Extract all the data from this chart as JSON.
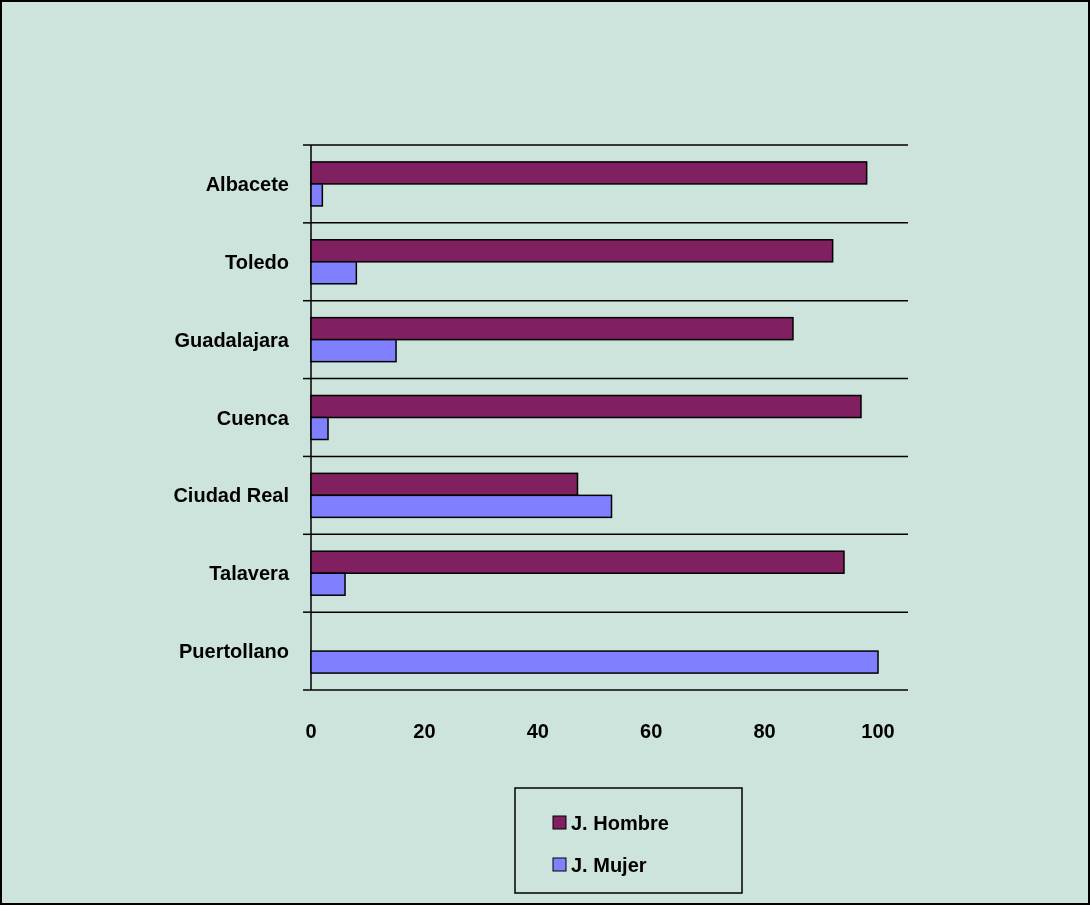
{
  "chart_data": {
    "type": "bar",
    "orientation": "horizontal",
    "categories": [
      "Albacete",
      "Toledo",
      "Guadalajara",
      "Cuenca",
      "Ciudad Real",
      "Talavera",
      "Puertollano"
    ],
    "series": [
      {
        "name": "J. Hombre",
        "color": "#802060",
        "values": [
          98,
          92,
          85,
          97,
          47,
          94,
          0
        ]
      },
      {
        "name": "J. Mujer",
        "color": "#8080ff",
        "values": [
          2,
          8,
          15,
          3,
          53,
          6,
          100
        ]
      }
    ],
    "xlim": [
      0,
      100
    ],
    "xticks": [
      0,
      20,
      40,
      60,
      80,
      100
    ],
    "grid": true,
    "legend": "bottom"
  }
}
